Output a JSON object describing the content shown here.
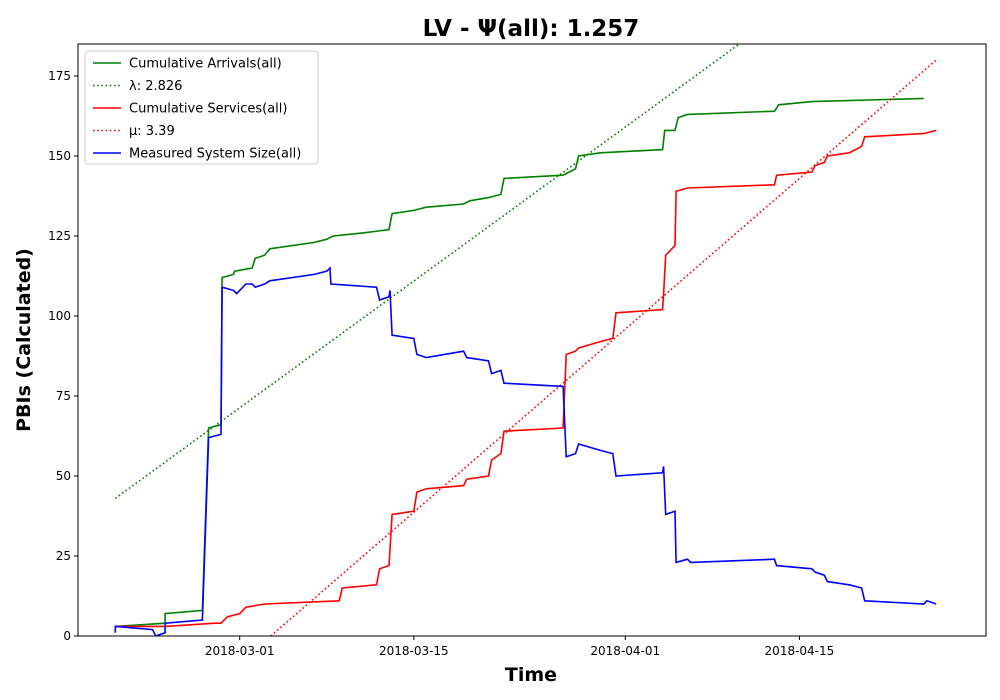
{
  "chart_data": {
    "type": "line",
    "title": "LV -  Ψ(all): 1.257",
    "xlabel": "Time",
    "ylabel": "PBIs (Calculated)",
    "xlim": [
      "2018-02-16",
      "2018-04-30"
    ],
    "ylim": [
      0,
      185
    ],
    "x_ticks": [
      "2018-03-01",
      "2018-03-15",
      "2018-04-01",
      "2018-04-15"
    ],
    "y_ticks": [
      0,
      25,
      50,
      75,
      100,
      125,
      150,
      175
    ],
    "grid": false,
    "legend_position": "top-left",
    "series": [
      {
        "name": "Cumulative Arrivals(all)",
        "style": "solid",
        "color": "#008000",
        "points": [
          [
            "2018-02-19 00:00",
            3
          ],
          [
            "2018-02-23 00:00",
            4
          ],
          [
            "2018-02-23 00:00",
            7
          ],
          [
            "2018-02-26 00:00",
            8
          ],
          [
            "2018-02-26 12:00",
            65
          ],
          [
            "2018-02-27 12:00",
            66
          ],
          [
            "2018-02-27 14:00",
            112
          ],
          [
            "2018-02-28 12:00",
            113
          ],
          [
            "2018-02-28 14:00",
            114
          ],
          [
            "2018-03-02 00:00",
            115
          ],
          [
            "2018-03-02 06:00",
            118
          ],
          [
            "2018-03-03 00:00",
            119
          ],
          [
            "2018-03-03 10:00",
            121
          ],
          [
            "2018-03-07 00:00",
            123
          ],
          [
            "2018-03-08 00:00",
            124
          ],
          [
            "2018-03-08 12:00",
            125
          ],
          [
            "2018-03-11 00:00",
            126
          ],
          [
            "2018-03-13 00:00",
            127
          ],
          [
            "2018-03-13 06:00",
            132
          ],
          [
            "2018-03-15 00:00",
            133
          ],
          [
            "2018-03-16 00:00",
            134
          ],
          [
            "2018-03-19 00:00",
            135
          ],
          [
            "2018-03-19 12:00",
            136
          ],
          [
            "2018-03-21 00:00",
            137
          ],
          [
            "2018-03-22 00:00",
            138
          ],
          [
            "2018-03-22 06:00",
            143
          ],
          [
            "2018-03-27 00:00",
            144
          ],
          [
            "2018-03-27 12:00",
            145
          ],
          [
            "2018-03-28 00:00",
            146
          ],
          [
            "2018-03-28 06:00",
            150
          ],
          [
            "2018-03-30 00:00",
            151
          ],
          [
            "2018-04-04 00:00",
            152
          ],
          [
            "2018-04-04 04:00",
            158
          ],
          [
            "2018-04-05 00:00",
            158
          ],
          [
            "2018-04-05 06:00",
            162
          ],
          [
            "2018-04-06 00:00",
            163
          ],
          [
            "2018-04-13 00:00",
            164
          ],
          [
            "2018-04-13 08:00",
            166
          ],
          [
            "2018-04-16 00:00",
            167
          ],
          [
            "2018-04-25 00:00",
            168
          ]
        ]
      },
      {
        "name": "λ: 2.826",
        "style": "dotted",
        "color": "#008000",
        "points": [
          [
            "2018-02-19 00:00",
            43
          ],
          [
            "2018-04-10 04:00",
            185
          ]
        ]
      },
      {
        "name": "Cumulative Services(all)",
        "style": "solid",
        "color": "#ff0000",
        "points": [
          [
            "2018-02-19 00:00",
            3
          ],
          [
            "2018-02-22 00:00",
            3
          ],
          [
            "2018-02-23 00:00",
            3
          ],
          [
            "2018-02-27 00:00",
            4
          ],
          [
            "2018-02-27 12:00",
            4
          ],
          [
            "2018-02-28 00:00",
            6
          ],
          [
            "2018-03-01 00:00",
            7
          ],
          [
            "2018-03-01 12:00",
            9
          ],
          [
            "2018-03-03 00:00",
            10
          ],
          [
            "2018-03-09 00:00",
            11
          ],
          [
            "2018-03-09 06:00",
            15
          ],
          [
            "2018-03-12 00:00",
            16
          ],
          [
            "2018-03-12 06:00",
            21
          ],
          [
            "2018-03-13 00:00",
            22
          ],
          [
            "2018-03-13 06:00",
            38
          ],
          [
            "2018-03-15 00:00",
            39
          ],
          [
            "2018-03-15 06:00",
            45
          ],
          [
            "2018-03-16 00:00",
            46
          ],
          [
            "2018-03-19 00:00",
            47
          ],
          [
            "2018-03-19 06:00",
            49
          ],
          [
            "2018-03-21 00:00",
            50
          ],
          [
            "2018-03-21 06:00",
            55
          ],
          [
            "2018-03-22 00:00",
            57
          ],
          [
            "2018-03-22 06:00",
            64
          ],
          [
            "2018-03-27 00:00",
            65
          ],
          [
            "2018-03-27 06:00",
            88
          ],
          [
            "2018-03-28 00:00",
            89
          ],
          [
            "2018-03-28 06:00",
            90
          ],
          [
            "2018-03-30 00:00",
            92
          ],
          [
            "2018-03-31 00:00",
            93
          ],
          [
            "2018-03-31 06:00",
            101
          ],
          [
            "2018-04-04 00:00",
            102
          ],
          [
            "2018-04-04 02:00",
            107
          ],
          [
            "2018-04-04 06:00",
            119
          ],
          [
            "2018-04-05 00:00",
            122
          ],
          [
            "2018-04-05 02:00",
            139
          ],
          [
            "2018-04-06 00:00",
            140
          ],
          [
            "2018-04-13 00:00",
            141
          ],
          [
            "2018-04-13 04:00",
            144
          ],
          [
            "2018-04-16 00:00",
            145
          ],
          [
            "2018-04-16 06:00",
            147
          ],
          [
            "2018-04-17 00:00",
            148
          ],
          [
            "2018-04-17 06:00",
            150
          ],
          [
            "2018-04-19 00:00",
            151
          ],
          [
            "2018-04-20 00:00",
            153
          ],
          [
            "2018-04-20 06:00",
            156
          ],
          [
            "2018-04-25 00:00",
            157
          ],
          [
            "2018-04-26 00:00",
            158
          ]
        ]
      },
      {
        "name": "μ: 3.39",
        "style": "dotted",
        "color": "#ff0000",
        "points": [
          [
            "2018-03-03 12:00",
            0
          ],
          [
            "2018-04-26 00:00",
            180
          ]
        ]
      },
      {
        "name": "Measured System Size(all)",
        "style": "solid",
        "color": "#0000ff",
        "points": [
          [
            "2018-02-19 00:00",
            1
          ],
          [
            "2018-02-19 00:00",
            3
          ],
          [
            "2018-02-22 00:00",
            2
          ],
          [
            "2018-02-22 06:00",
            0
          ],
          [
            "2018-02-23 00:00",
            1
          ],
          [
            "2018-02-23 00:00",
            4
          ],
          [
            "2018-02-26 00:00",
            5
          ],
          [
            "2018-02-26 12:00",
            62
          ],
          [
            "2018-02-27 12:00",
            63
          ],
          [
            "2018-02-27 14:00",
            109
          ],
          [
            "2018-02-28 12:00",
            108
          ],
          [
            "2018-02-28 18:00",
            107
          ],
          [
            "2018-03-01 00:00",
            108
          ],
          [
            "2018-03-01 12:00",
            110
          ],
          [
            "2018-03-02 00:00",
            110
          ],
          [
            "2018-03-02 06:00",
            109
          ],
          [
            "2018-03-03 00:00",
            110
          ],
          [
            "2018-03-03 10:00",
            111
          ],
          [
            "2018-03-07 00:00",
            113
          ],
          [
            "2018-03-08 00:00",
            114
          ],
          [
            "2018-03-08 06:00",
            115
          ],
          [
            "2018-03-08 08:00",
            110
          ],
          [
            "2018-03-12 00:00",
            109
          ],
          [
            "2018-03-12 06:00",
            105
          ],
          [
            "2018-03-13 00:00",
            106
          ],
          [
            "2018-03-13 02:00",
            108
          ],
          [
            "2018-03-13 06:00",
            94
          ],
          [
            "2018-03-15 00:00",
            93
          ],
          [
            "2018-03-15 06:00",
            88
          ],
          [
            "2018-03-16 00:00",
            87
          ],
          [
            "2018-03-19 00:00",
            89
          ],
          [
            "2018-03-19 06:00",
            87
          ],
          [
            "2018-03-21 00:00",
            86
          ],
          [
            "2018-03-21 06:00",
            82
          ],
          [
            "2018-03-22 00:00",
            83
          ],
          [
            "2018-03-22 06:00",
            79
          ],
          [
            "2018-03-27 00:00",
            78
          ],
          [
            "2018-03-27 06:00",
            56
          ],
          [
            "2018-03-28 00:00",
            57
          ],
          [
            "2018-03-28 06:00",
            60
          ],
          [
            "2018-03-30 00:00",
            58
          ],
          [
            "2018-03-31 00:00",
            57
          ],
          [
            "2018-03-31 06:00",
            50
          ],
          [
            "2018-04-04 00:00",
            51
          ],
          [
            "2018-04-04 02:00",
            53
          ],
          [
            "2018-04-04 04:00",
            45
          ],
          [
            "2018-04-04 06:00",
            38
          ],
          [
            "2018-04-05 00:00",
            39
          ],
          [
            "2018-04-05 02:00",
            23
          ],
          [
            "2018-04-06 00:00",
            24
          ],
          [
            "2018-04-06 06:00",
            23
          ],
          [
            "2018-04-13 00:00",
            24
          ],
          [
            "2018-04-13 04:00",
            22
          ],
          [
            "2018-04-16 00:00",
            21
          ],
          [
            "2018-04-16 06:00",
            20
          ],
          [
            "2018-04-17 00:00",
            19
          ],
          [
            "2018-04-17 06:00",
            17
          ],
          [
            "2018-04-19 00:00",
            16
          ],
          [
            "2018-04-20 00:00",
            15
          ],
          [
            "2018-04-20 06:00",
            11
          ],
          [
            "2018-04-25 00:00",
            10
          ],
          [
            "2018-04-25 06:00",
            11
          ],
          [
            "2018-04-26 00:00",
            10
          ]
        ]
      }
    ]
  }
}
